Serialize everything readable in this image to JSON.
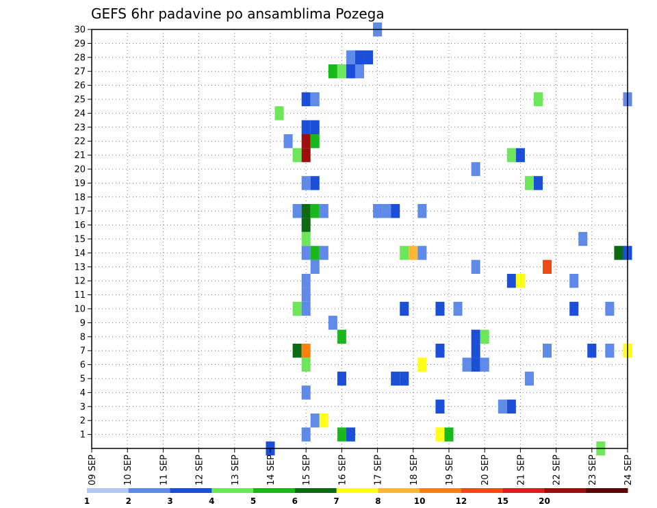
{
  "chart_data": {
    "type": "heatmap",
    "title": "GEFS 6hr padavine po ansamblima Pozega",
    "xlabel": "",
    "ylabel": "",
    "x_tick_labels": [
      "09 SEP",
      "10 SEP",
      "11 SEP",
      "12 SEP",
      "13 SEP",
      "14 SEP",
      "15 SEP",
      "16 SEP",
      "17 SEP",
      "18 SEP",
      "19 SEP",
      "20 SEP",
      "21 SEP",
      "22 SEP",
      "23 SEP",
      "24 SEP"
    ],
    "x_range_days": [
      0,
      15
    ],
    "y_tick_labels": [
      "1",
      "2",
      "3",
      "4",
      "5",
      "6",
      "7",
      "8",
      "9",
      "10",
      "11",
      "12",
      "13",
      "14",
      "15",
      "16",
      "17",
      "18",
      "19",
      "20",
      "21",
      "22",
      "23",
      "24",
      "25",
      "26",
      "27",
      "28",
      "29",
      "30"
    ],
    "y_range": [
      0,
      30
    ],
    "grid": true,
    "legend": {
      "placement": "bottom",
      "labels": [
        "1",
        "2",
        "3",
        "4",
        "5",
        "6",
        "7",
        "8",
        "10",
        "12",
        "15",
        "20"
      ],
      "colors": [
        "#b3c8f5",
        "#5f8ae8",
        "#1c4fd8",
        "#6ee65a",
        "#19b81d",
        "#0c6b12",
        "#ffff1a",
        "#ffb733",
        "#ff7f0e",
        "#f04a17",
        "#d81e1e",
        "#a00d0d",
        "#5c0505"
      ]
    },
    "cells": [
      {
        "x": 5.0,
        "y": 0,
        "c": 2
      },
      {
        "x": 5.25,
        "y": 24,
        "c": 3
      },
      {
        "x": 5.5,
        "y": 22,
        "c": 1
      },
      {
        "x": 5.75,
        "y": 21,
        "c": 3
      },
      {
        "x": 5.75,
        "y": 17,
        "c": 1
      },
      {
        "x": 5.75,
        "y": 10,
        "c": 3
      },
      {
        "x": 5.75,
        "y": 7,
        "c": 5
      },
      {
        "x": 6.0,
        "y": 25,
        "c": 2
      },
      {
        "x": 6.0,
        "y": 23,
        "c": 2
      },
      {
        "x": 6.0,
        "y": 22,
        "c": 11
      },
      {
        "x": 6.0,
        "y": 21,
        "c": 11
      },
      {
        "x": 6.0,
        "y": 19,
        "c": 1
      },
      {
        "x": 6.0,
        "y": 17,
        "c": 5
      },
      {
        "x": 6.0,
        "y": 16,
        "c": 5
      },
      {
        "x": 6.0,
        "y": 15,
        "c": 3
      },
      {
        "x": 6.0,
        "y": 14,
        "c": 1
      },
      {
        "x": 6.0,
        "y": 12,
        "c": 1
      },
      {
        "x": 6.0,
        "y": 11,
        "c": 1
      },
      {
        "x": 6.0,
        "y": 10,
        "c": 1
      },
      {
        "x": 6.0,
        "y": 7,
        "c": 8
      },
      {
        "x": 6.0,
        "y": 6,
        "c": 3
      },
      {
        "x": 6.0,
        "y": 4,
        "c": 1
      },
      {
        "x": 6.0,
        "y": 1,
        "c": 1
      },
      {
        "x": 6.25,
        "y": 25,
        "c": 1
      },
      {
        "x": 6.25,
        "y": 23,
        "c": 2
      },
      {
        "x": 6.25,
        "y": 22,
        "c": 4
      },
      {
        "x": 6.25,
        "y": 19,
        "c": 2
      },
      {
        "x": 6.25,
        "y": 17,
        "c": 4
      },
      {
        "x": 6.25,
        "y": 14,
        "c": 4
      },
      {
        "x": 6.25,
        "y": 13,
        "c": 1
      },
      {
        "x": 6.25,
        "y": 2,
        "c": 1
      },
      {
        "x": 6.5,
        "y": 17,
        "c": 1
      },
      {
        "x": 6.5,
        "y": 14,
        "c": 1
      },
      {
        "x": 6.5,
        "y": 2,
        "c": 6
      },
      {
        "x": 6.75,
        "y": 27,
        "c": 4
      },
      {
        "x": 6.75,
        "y": 9,
        "c": 1
      },
      {
        "x": 7.0,
        "y": 27,
        "c": 3
      },
      {
        "x": 7.0,
        "y": 8,
        "c": 4
      },
      {
        "x": 7.0,
        "y": 1,
        "c": 4
      },
      {
        "x": 7.0,
        "y": 5,
        "c": 2
      },
      {
        "x": 7.25,
        "y": 28,
        "c": 1
      },
      {
        "x": 7.25,
        "y": 27,
        "c": 2
      },
      {
        "x": 7.25,
        "y": 1,
        "c": 2
      },
      {
        "x": 7.5,
        "y": 28,
        "c": 2
      },
      {
        "x": 7.5,
        "y": 27,
        "c": 1
      },
      {
        "x": 7.75,
        "y": 28,
        "c": 2
      },
      {
        "x": 8.0,
        "y": 30,
        "c": 1
      },
      {
        "x": 8.0,
        "y": 17,
        "c": 1
      },
      {
        "x": 8.25,
        "y": 17,
        "c": 1
      },
      {
        "x": 8.5,
        "y": 17,
        "c": 2
      },
      {
        "x": 8.5,
        "y": 5,
        "c": 2
      },
      {
        "x": 8.75,
        "y": 14,
        "c": 3
      },
      {
        "x": 8.75,
        "y": 10,
        "c": 2
      },
      {
        "x": 8.75,
        "y": 5,
        "c": 2
      },
      {
        "x": 9.0,
        "y": 14,
        "c": 7
      },
      {
        "x": 9.25,
        "y": 17,
        "c": 1
      },
      {
        "x": 9.25,
        "y": 14,
        "c": 1
      },
      {
        "x": 9.25,
        "y": 6,
        "c": 6
      },
      {
        "x": 9.75,
        "y": 10,
        "c": 2
      },
      {
        "x": 9.75,
        "y": 7,
        "c": 2
      },
      {
        "x": 9.75,
        "y": 3,
        "c": 2
      },
      {
        "x": 9.75,
        "y": 1,
        "c": 6
      },
      {
        "x": 10.0,
        "y": 1,
        "c": 4
      },
      {
        "x": 10.25,
        "y": 10,
        "c": 1
      },
      {
        "x": 10.5,
        "y": 6,
        "c": 1
      },
      {
        "x": 10.75,
        "y": 20,
        "c": 1
      },
      {
        "x": 10.75,
        "y": 13,
        "c": 1
      },
      {
        "x": 10.75,
        "y": 8,
        "c": 2
      },
      {
        "x": 10.75,
        "y": 7,
        "c": 2
      },
      {
        "x": 10.75,
        "y": 6,
        "c": 2
      },
      {
        "x": 11.0,
        "y": 8,
        "c": 3
      },
      {
        "x": 11.0,
        "y": 6,
        "c": 1
      },
      {
        "x": 11.5,
        "y": 3,
        "c": 1
      },
      {
        "x": 11.75,
        "y": 21,
        "c": 3
      },
      {
        "x": 11.75,
        "y": 12,
        "c": 2
      },
      {
        "x": 11.75,
        "y": 3,
        "c": 2
      },
      {
        "x": 12.0,
        "y": 21,
        "c": 2
      },
      {
        "x": 12.0,
        "y": 12,
        "c": 6
      },
      {
        "x": 12.25,
        "y": 19,
        "c": 3
      },
      {
        "x": 12.25,
        "y": 5,
        "c": 1
      },
      {
        "x": 12.5,
        "y": 25,
        "c": 3
      },
      {
        "x": 12.5,
        "y": 19,
        "c": 2
      },
      {
        "x": 12.75,
        "y": 13,
        "c": 9
      },
      {
        "x": 12.75,
        "y": 7,
        "c": 1
      },
      {
        "x": 13.5,
        "y": 12,
        "c": 1
      },
      {
        "x": 13.5,
        "y": 10,
        "c": 2
      },
      {
        "x": 13.75,
        "y": 15,
        "c": 1
      },
      {
        "x": 14.0,
        "y": 7,
        "c": 2
      },
      {
        "x": 14.25,
        "y": 0,
        "c": 3
      },
      {
        "x": 14.5,
        "y": 10,
        "c": 1
      },
      {
        "x": 14.5,
        "y": 7,
        "c": 1
      },
      {
        "x": 14.75,
        "y": 14,
        "c": 5
      },
      {
        "x": 15.0,
        "y": 25,
        "c": 1
      },
      {
        "x": 15.0,
        "y": 14,
        "c": 2
      },
      {
        "x": 15.0,
        "y": 7,
        "c": 6
      }
    ]
  }
}
